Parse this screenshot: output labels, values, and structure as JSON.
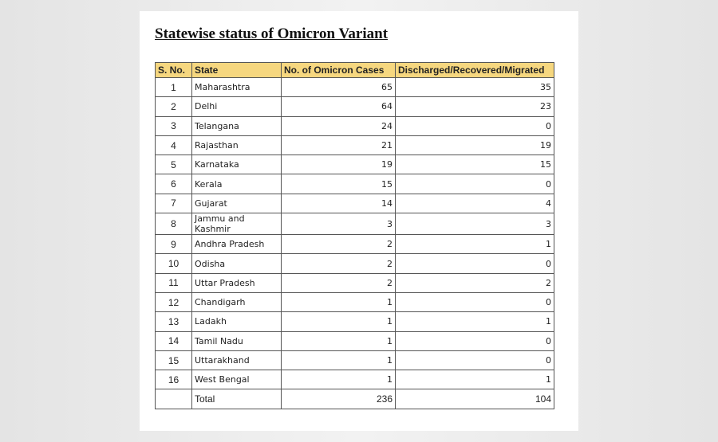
{
  "header": {
    "title": "Statewise status of Omicron Variant"
  },
  "table": {
    "headers": [
      "S. No.",
      "State",
      "No. of Omicron Cases",
      "Discharged/Recovered/Migrated"
    ],
    "rows": [
      [
        1,
        "Maharashtra",
        65,
        35
      ],
      [
        2,
        "Delhi",
        64,
        23
      ],
      [
        3,
        "Telangana",
        24,
        0
      ],
      [
        4,
        "Rajasthan",
        21,
        19
      ],
      [
        5,
        "Karnataka",
        19,
        15
      ],
      [
        6,
        "Kerala",
        15,
        0
      ],
      [
        7,
        "Gujarat",
        14,
        4
      ],
      [
        8,
        "Jammu and Kashmir",
        3,
        3
      ],
      [
        9,
        "Andhra Pradesh",
        2,
        1
      ],
      [
        10,
        "Odisha",
        2,
        0
      ],
      [
        11,
        "Uttar Pradesh",
        2,
        2
      ],
      [
        12,
        "Chandigarh",
        1,
        0
      ],
      [
        13,
        "Ladakh",
        1,
        1
      ],
      [
        14,
        "Tamil Nadu",
        1,
        0
      ],
      [
        15,
        "Uttarakhand",
        1,
        0
      ],
      [
        16,
        "West Bengal",
        1,
        1
      ]
    ],
    "total": {
      "label": "Total",
      "cases": 236,
      "discharged": 104
    }
  }
}
